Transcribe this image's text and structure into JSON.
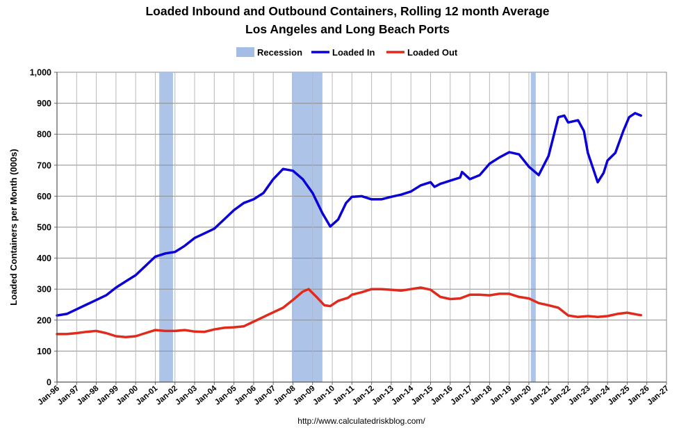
{
  "chart_data": {
    "type": "line",
    "title": "Loaded Inbound and Outbound Containers, Rolling 12 month Average",
    "subtitle": "Los Angeles and Long Beach Ports",
    "ylabel": "Loaded Containers per Month (000s)",
    "xlabel": "",
    "source": "http://www.calculatedriskblog.com/",
    "ylim": [
      0,
      1000
    ],
    "xlim": [
      1996.0,
      2027.0
    ],
    "grid": true,
    "legend_position": "top-center",
    "y_ticks": [
      {
        "value": 0,
        "label": "0"
      },
      {
        "value": 100,
        "label": "100"
      },
      {
        "value": 200,
        "label": "200"
      },
      {
        "value": 300,
        "label": "300"
      },
      {
        "value": 400,
        "label": "400"
      },
      {
        "value": 500,
        "label": "500"
      },
      {
        "value": 600,
        "label": "600"
      },
      {
        "value": 700,
        "label": "700"
      },
      {
        "value": 800,
        "label": "800"
      },
      {
        "value": 900,
        "label": "900"
      },
      {
        "value": 1000,
        "label": "1,000"
      }
    ],
    "x_ticks": [
      {
        "value": 1996,
        "label": "Jan-96"
      },
      {
        "value": 1997,
        "label": "Jan-97"
      },
      {
        "value": 1998,
        "label": "Jan-98"
      },
      {
        "value": 1999,
        "label": "Jan-99"
      },
      {
        "value": 2000,
        "label": "Jan-00"
      },
      {
        "value": 2001,
        "label": "Jan-01"
      },
      {
        "value": 2002,
        "label": "Jan-02"
      },
      {
        "value": 2003,
        "label": "Jan-03"
      },
      {
        "value": 2004,
        "label": "Jan-04"
      },
      {
        "value": 2005,
        "label": "Jan-05"
      },
      {
        "value": 2006,
        "label": "Jan-06"
      },
      {
        "value": 2007,
        "label": "Jan-07"
      },
      {
        "value": 2008,
        "label": "Jan-08"
      },
      {
        "value": 2009,
        "label": "Jan-09"
      },
      {
        "value": 2010,
        "label": "Jan-10"
      },
      {
        "value": 2011,
        "label": "Jan-11"
      },
      {
        "value": 2012,
        "label": "Jan-12"
      },
      {
        "value": 2013,
        "label": "Jan-13"
      },
      {
        "value": 2014,
        "label": "Jan-14"
      },
      {
        "value": 2015,
        "label": "Jan-15"
      },
      {
        "value": 2016,
        "label": "Jan-16"
      },
      {
        "value": 2017,
        "label": "Jan-17"
      },
      {
        "value": 2018,
        "label": "Jan-18"
      },
      {
        "value": 2019,
        "label": "Jan-19"
      },
      {
        "value": 2020,
        "label": "Jan-20"
      },
      {
        "value": 2021,
        "label": "Jan-21"
      },
      {
        "value": 2022,
        "label": "Jan-22"
      },
      {
        "value": 2023,
        "label": "Jan-23"
      },
      {
        "value": 2024,
        "label": "Jan-24"
      },
      {
        "value": 2025,
        "label": "Jan-25"
      },
      {
        "value": 2026,
        "label": "Jan-26"
      },
      {
        "value": 2027,
        "label": "Jan-27"
      }
    ],
    "recessions": [
      {
        "name": "Recession",
        "start": 2001.2,
        "end": 2001.9
      },
      {
        "name": "Recession",
        "start": 2007.95,
        "end": 2009.5
      },
      {
        "name": "Recession",
        "start": 2020.1,
        "end": 2020.35
      }
    ],
    "legend": [
      {
        "label": "Recession",
        "kind": "band"
      },
      {
        "label": "Loaded In",
        "kind": "line"
      },
      {
        "label": "Loaded Out",
        "kind": "line"
      }
    ],
    "series": [
      {
        "name": "Loaded In",
        "color": "#0a00d6",
        "points": [
          [
            1996.0,
            215
          ],
          [
            1996.5,
            220
          ],
          [
            1997.0,
            235
          ],
          [
            1997.5,
            250
          ],
          [
            1998.0,
            265
          ],
          [
            1998.5,
            280
          ],
          [
            1999.0,
            305
          ],
          [
            1999.5,
            325
          ],
          [
            2000.0,
            345
          ],
          [
            2000.5,
            375
          ],
          [
            2001.0,
            405
          ],
          [
            2001.5,
            415
          ],
          [
            2002.0,
            420
          ],
          [
            2002.5,
            440
          ],
          [
            2003.0,
            465
          ],
          [
            2003.5,
            480
          ],
          [
            2004.0,
            495
          ],
          [
            2004.5,
            525
          ],
          [
            2005.0,
            555
          ],
          [
            2005.5,
            578
          ],
          [
            2006.0,
            590
          ],
          [
            2006.5,
            610
          ],
          [
            2007.0,
            655
          ],
          [
            2007.5,
            688
          ],
          [
            2008.0,
            682
          ],
          [
            2008.5,
            655
          ],
          [
            2009.0,
            610
          ],
          [
            2009.5,
            545
          ],
          [
            2009.9,
            502
          ],
          [
            2010.3,
            525
          ],
          [
            2010.7,
            578
          ],
          [
            2011.0,
            598
          ],
          [
            2011.5,
            600
          ],
          [
            2012.0,
            590
          ],
          [
            2012.5,
            590
          ],
          [
            2013.0,
            598
          ],
          [
            2013.5,
            605
          ],
          [
            2014.0,
            615
          ],
          [
            2014.5,
            635
          ],
          [
            2015.0,
            645
          ],
          [
            2015.2,
            630
          ],
          [
            2015.5,
            640
          ],
          [
            2016.0,
            650
          ],
          [
            2016.5,
            660
          ],
          [
            2016.6,
            678
          ],
          [
            2017.0,
            655
          ],
          [
            2017.5,
            668
          ],
          [
            2018.0,
            705
          ],
          [
            2018.5,
            725
          ],
          [
            2019.0,
            742
          ],
          [
            2019.5,
            735
          ],
          [
            2020.0,
            695
          ],
          [
            2020.5,
            668
          ],
          [
            2021.0,
            730
          ],
          [
            2021.5,
            855
          ],
          [
            2021.8,
            860
          ],
          [
            2022.0,
            838
          ],
          [
            2022.5,
            845
          ],
          [
            2022.8,
            810
          ],
          [
            2023.0,
            740
          ],
          [
            2023.5,
            645
          ],
          [
            2023.8,
            675
          ],
          [
            2024.0,
            715
          ],
          [
            2024.4,
            740
          ],
          [
            2024.8,
            810
          ],
          [
            2025.1,
            855
          ],
          [
            2025.4,
            868
          ],
          [
            2025.7,
            860
          ]
        ]
      },
      {
        "name": "Loaded Out",
        "color": "#e02a1c",
        "points": [
          [
            1996.0,
            155
          ],
          [
            1996.5,
            155
          ],
          [
            1997.0,
            158
          ],
          [
            1997.5,
            162
          ],
          [
            1998.0,
            165
          ],
          [
            1998.5,
            158
          ],
          [
            1999.0,
            148
          ],
          [
            1999.5,
            145
          ],
          [
            2000.0,
            148
          ],
          [
            2000.5,
            158
          ],
          [
            2001.0,
            168
          ],
          [
            2001.5,
            165
          ],
          [
            2002.0,
            165
          ],
          [
            2002.5,
            168
          ],
          [
            2003.0,
            163
          ],
          [
            2003.5,
            162
          ],
          [
            2004.0,
            170
          ],
          [
            2004.5,
            175
          ],
          [
            2005.0,
            177
          ],
          [
            2005.5,
            180
          ],
          [
            2006.0,
            195
          ],
          [
            2006.5,
            210
          ],
          [
            2007.0,
            225
          ],
          [
            2007.5,
            240
          ],
          [
            2008.0,
            265
          ],
          [
            2008.5,
            292
          ],
          [
            2008.8,
            300
          ],
          [
            2009.2,
            275
          ],
          [
            2009.6,
            248
          ],
          [
            2009.9,
            245
          ],
          [
            2010.3,
            262
          ],
          [
            2010.8,
            272
          ],
          [
            2011.0,
            282
          ],
          [
            2011.5,
            290
          ],
          [
            2012.0,
            300
          ],
          [
            2012.5,
            300
          ],
          [
            2013.0,
            298
          ],
          [
            2013.5,
            295
          ],
          [
            2014.0,
            300
          ],
          [
            2014.5,
            305
          ],
          [
            2015.0,
            298
          ],
          [
            2015.5,
            275
          ],
          [
            2016.0,
            268
          ],
          [
            2016.5,
            270
          ],
          [
            2017.0,
            282
          ],
          [
            2017.5,
            282
          ],
          [
            2018.0,
            280
          ],
          [
            2018.5,
            285
          ],
          [
            2019.0,
            285
          ],
          [
            2019.5,
            275
          ],
          [
            2020.0,
            270
          ],
          [
            2020.5,
            255
          ],
          [
            2021.0,
            248
          ],
          [
            2021.5,
            240
          ],
          [
            2022.0,
            215
          ],
          [
            2022.5,
            210
          ],
          [
            2023.0,
            213
          ],
          [
            2023.5,
            210
          ],
          [
            2024.0,
            213
          ],
          [
            2024.5,
            220
          ],
          [
            2025.0,
            224
          ],
          [
            2025.5,
            218
          ],
          [
            2025.7,
            216
          ]
        ]
      }
    ]
  }
}
